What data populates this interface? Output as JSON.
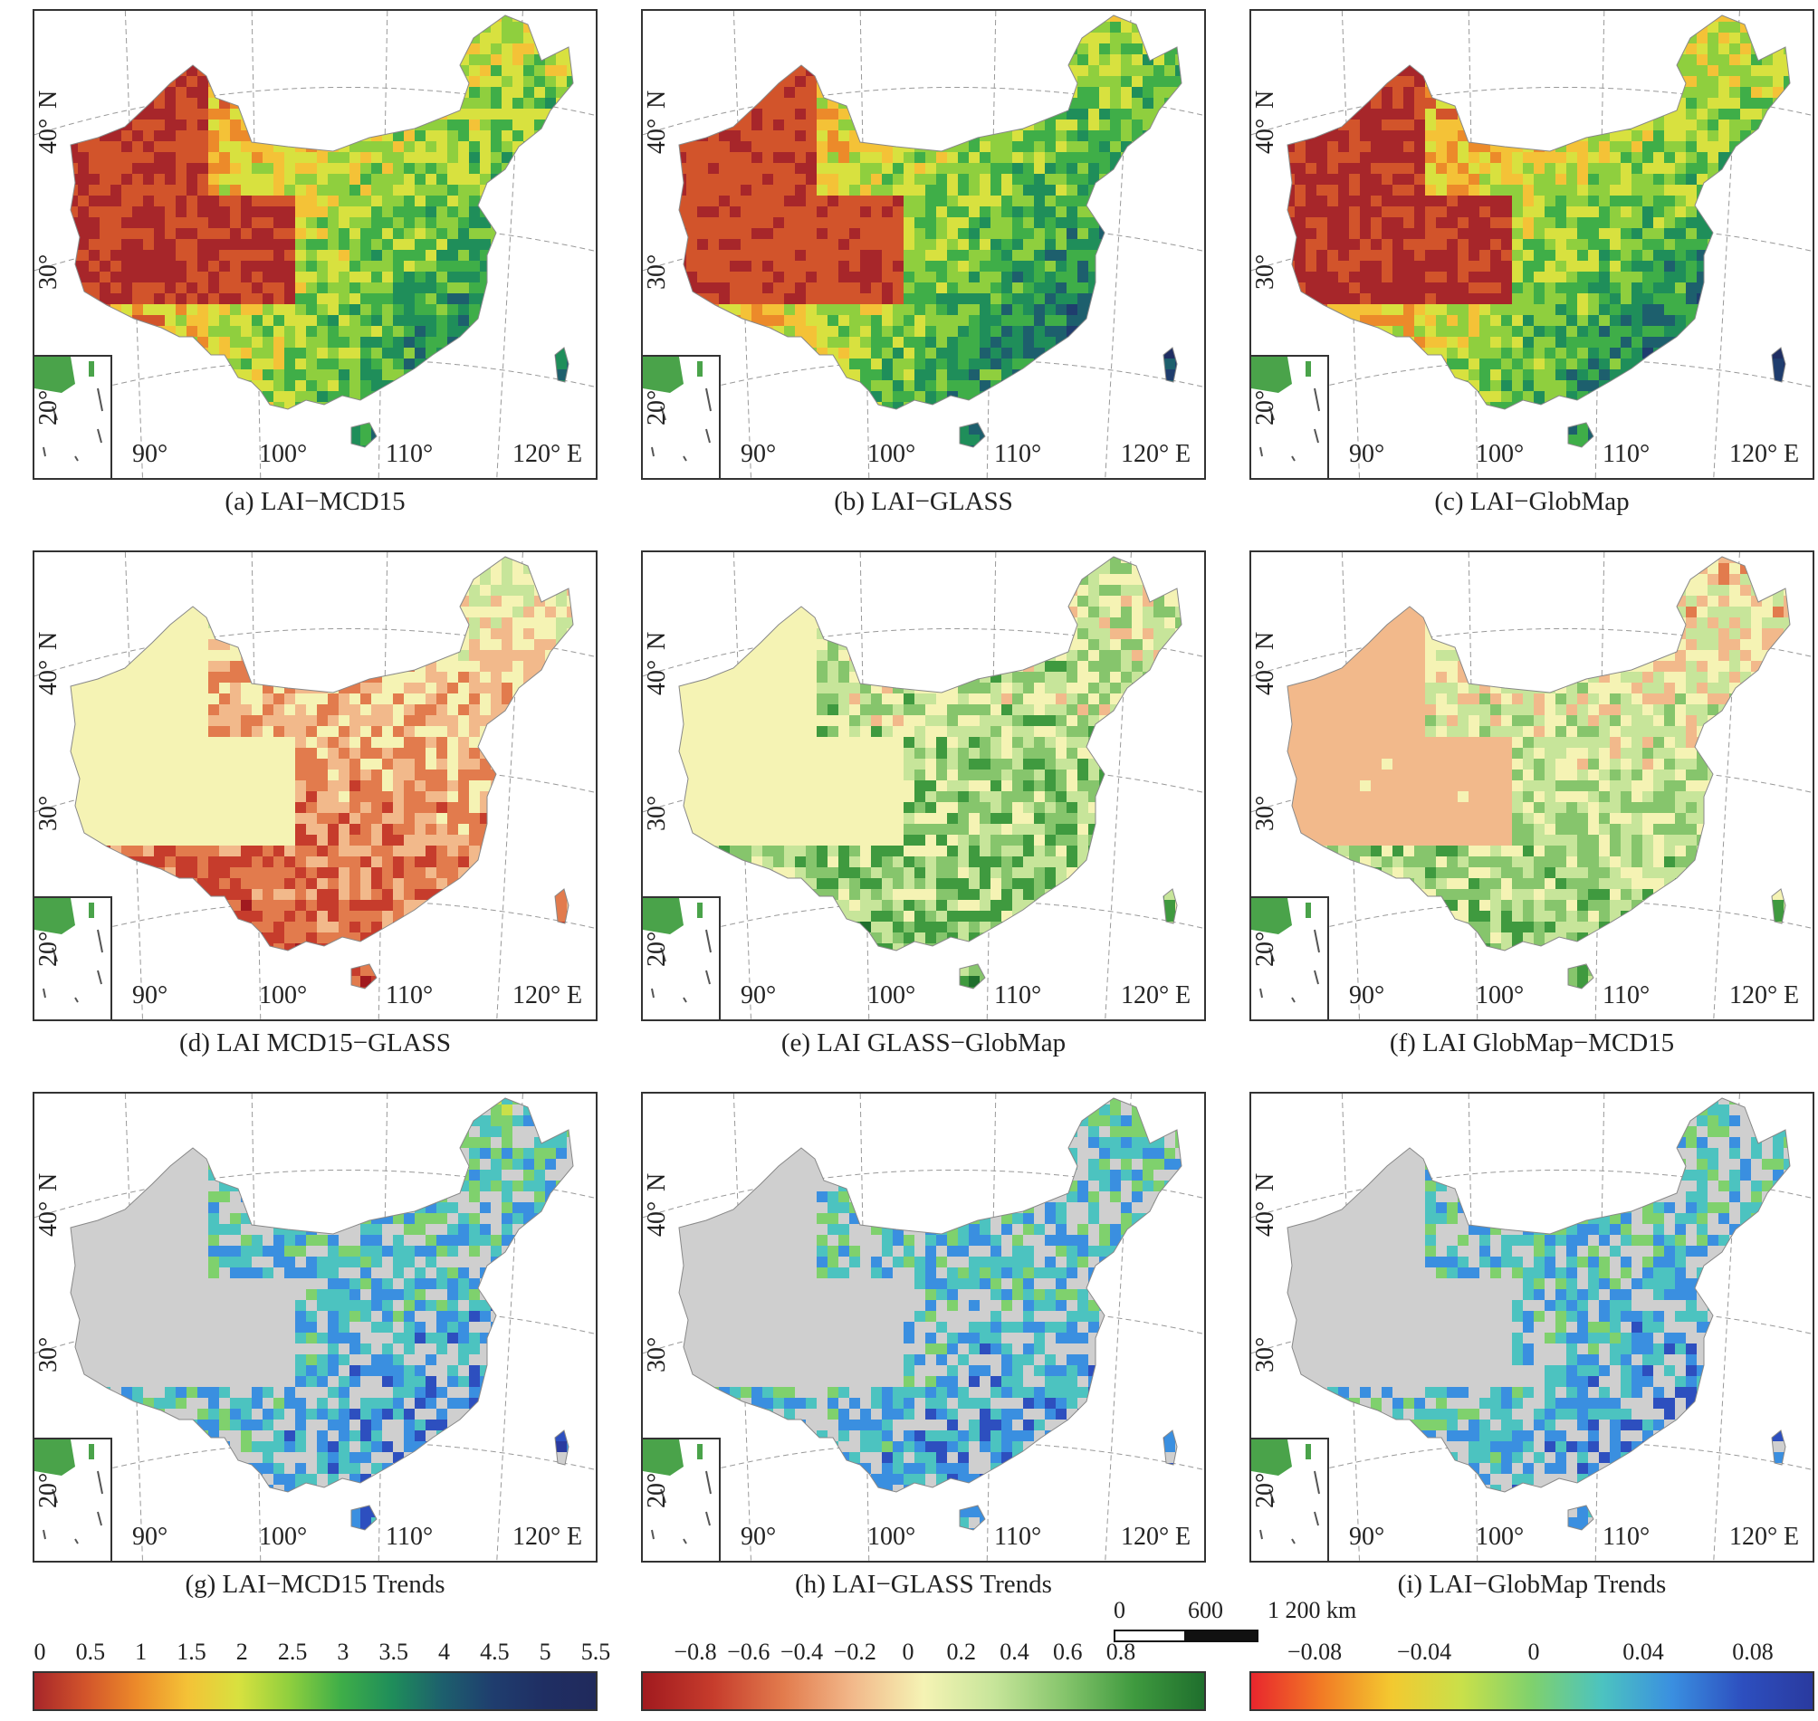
{
  "panels": [
    {
      "caption": "(a) LAI−MCD15",
      "palette": "lai",
      "pattern": "mcd"
    },
    {
      "caption": "(b) LAI−GLASS",
      "palette": "lai",
      "pattern": "glass"
    },
    {
      "caption": "(c) LAI−GlobMap",
      "palette": "lai",
      "pattern": "globmap"
    },
    {
      "caption": "(d) LAI MCD15−GLASS",
      "palette": "diff",
      "pattern": "d1"
    },
    {
      "caption": "(e) LAI GLASS−GlobMap",
      "palette": "diff",
      "pattern": "d2"
    },
    {
      "caption": "(f) LAI GlobMap−MCD15",
      "palette": "diff",
      "pattern": "d3"
    },
    {
      "caption": "(g) LAI−MCD15 Trends",
      "palette": "trend",
      "pattern": "t1"
    },
    {
      "caption": "(h) LAI−GLASS Trends",
      "palette": "trend",
      "pattern": "t2"
    },
    {
      "caption": "(i) LAI−GlobMap Trends",
      "palette": "trend",
      "pattern": "t3"
    }
  ],
  "axes": {
    "lat_labels": [
      "40°",
      "30°",
      "20°"
    ],
    "lat_unit": "N",
    "lon_labels": [
      "90°",
      "100°",
      "110°",
      "120°"
    ],
    "lon_unit": "E"
  },
  "scale_bar": {
    "labels": [
      "0",
      "600",
      "1 200 km"
    ]
  },
  "colorbars": [
    {
      "name": "lai",
      "ticks": [
        "0",
        "0.5",
        "1",
        "1.5",
        "2",
        "2.5",
        "3",
        "3.5",
        "4",
        "4.5",
        "5",
        "5.5"
      ],
      "colors": [
        "#a7262a",
        "#d2542b",
        "#ec8a2a",
        "#f4c237",
        "#d8e13f",
        "#8fcf3e",
        "#3fae48",
        "#1f8e5a",
        "#1d5f6d",
        "#1f3d6e",
        "#1f2e63",
        "#202a5c"
      ]
    },
    {
      "name": "diff",
      "ticks": [
        "−0.8",
        "−0.6",
        "−0.4",
        "−0.2",
        "0",
        "0.2",
        "0.4",
        "0.6",
        "0.8"
      ],
      "colors": [
        "#a11a1f",
        "#c63c2c",
        "#e27b4d",
        "#f2b98b",
        "#f5f3b4",
        "#c7e59a",
        "#86c56c",
        "#3f9a3f",
        "#1f6f2d"
      ]
    },
    {
      "name": "trend",
      "ticks": [
        "−0.08",
        "−0.04",
        "0",
        "0.04",
        "0.08"
      ],
      "colors": [
        "#e8262d",
        "#f27b25",
        "#f3c930",
        "#c9e04a",
        "#7fd16d",
        "#4cc3c0",
        "#3a8fe0",
        "#2d4fbf",
        "#2a3a9f"
      ]
    }
  ]
}
